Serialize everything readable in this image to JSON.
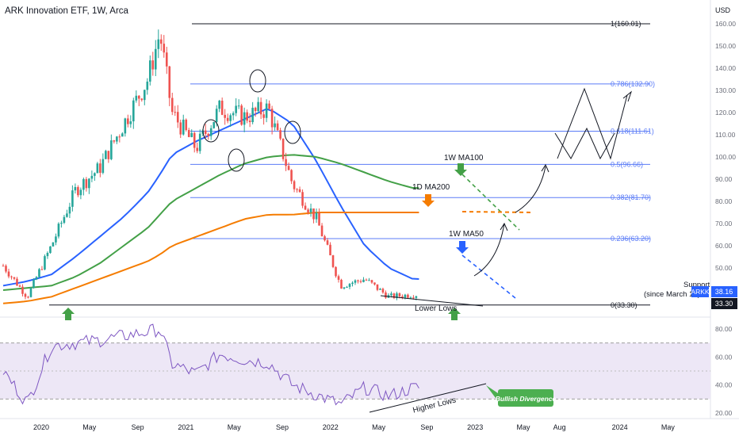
{
  "header": {
    "title": "ARK Innovation ETF, 1W, Arca"
  },
  "currency": "USD",
  "colors": {
    "bull": "#26a69a",
    "bear": "#ef5350",
    "ma50": "#2962ff",
    "ma100": "#43a047",
    "ma200": "#f57c00",
    "fib": "#5b7cf7",
    "rsi": "#7e57c2",
    "rsi_band": "#ede7f6",
    "green_arrow": "#43a047",
    "orange_arrow": "#f57c00",
    "blue_arrow": "#2962ff",
    "divergence_box": "#4caf50"
  },
  "price_axis": {
    "ticks": [
      "160.00",
      "150.00",
      "140.00",
      "130.00",
      "120.00",
      "110.00",
      "100.00",
      "90.00",
      "80.00",
      "70.00",
      "60.00",
      "50.00",
      "40.00"
    ],
    "tick_values": [
      160,
      150,
      140,
      130,
      120,
      110,
      100,
      90,
      80,
      70,
      60,
      50,
      40
    ]
  },
  "rsi_axis": {
    "ticks": [
      "80.00",
      "60.00",
      "40.00",
      "20.00"
    ],
    "tick_values": [
      80,
      60,
      40,
      20
    ]
  },
  "time_axis": {
    "labels": [
      "2020",
      "May",
      "Sep",
      "2021",
      "May",
      "Sep",
      "2022",
      "May",
      "Sep",
      "2023",
      "May",
      "Aug",
      "2024",
      "May"
    ]
  },
  "badges": {
    "ticker": "ARKK",
    "last_price": "38.16",
    "support_price": "33.30"
  },
  "fib_levels": [
    {
      "label": "1(160.01)",
      "value": 160.01
    },
    {
      "label": "0.786(132.90)",
      "value": 132.9
    },
    {
      "label": "0.618(111.61)",
      "value": 111.61
    },
    {
      "label": "0.5(96.66)",
      "value": 96.66
    },
    {
      "label": "0.382(81.70)",
      "value": 81.7
    },
    {
      "label": "0.236(63.20)",
      "value": 63.2
    },
    {
      "label": "0(33.30)",
      "value": 33.3
    }
  ],
  "annotations": {
    "ma100": "1W MA100",
    "ma200": "1D MA200",
    "ma50": "1W MA50",
    "support_line1": "Support",
    "support_line2": "(since March 16)",
    "lower_lows": "Lower Lows",
    "higher_lows": "Higher Lows",
    "bullish_divergence": "Bullish Divergence"
  },
  "chart_data": {
    "type": "line",
    "title": "ARK Innovation ETF, 1W, Arca",
    "ylabel": "USD",
    "ylim": [
      30,
      165
    ],
    "x": [
      "2020-01",
      "2020-03",
      "2020-05",
      "2020-07",
      "2020-09",
      "2020-11",
      "2021-01",
      "2021-02",
      "2021-03",
      "2021-05",
      "2021-07",
      "2021-09",
      "2021-11",
      "2022-01",
      "2022-03",
      "2022-05",
      "2022-07",
      "2022-09",
      "2022-11"
    ],
    "series": [
      {
        "name": "ARKK",
        "values": [
          51,
          37,
          60,
          85,
          95,
          115,
          135,
          156,
          120,
          104,
          122,
          118,
          122,
          88,
          72,
          42,
          45,
          37,
          38
        ]
      },
      {
        "name": "1W MA50",
        "values": [
          42,
          44,
          47,
          55,
          64,
          73,
          84,
          92,
          101,
          107,
          112,
          117,
          122,
          115,
          98,
          78,
          60,
          50,
          45
        ]
      },
      {
        "name": "1W MA100",
        "values": [
          40,
          41,
          42,
          46,
          52,
          60,
          68,
          74,
          80,
          86,
          92,
          97,
          100,
          101,
          100,
          97,
          93,
          89,
          86
        ]
      },
      {
        "name": "1D MA200",
        "values": [
          34,
          35,
          37,
          41,
          45,
          49,
          53,
          56,
          60,
          64,
          68,
          72,
          74,
          74,
          75,
          75,
          75,
          75,
          75
        ]
      },
      {
        "name": "RSI",
        "values": [
          50,
          27,
          68,
          70,
          72,
          75,
          78,
          80,
          55,
          48,
          62,
          58,
          56,
          40,
          33,
          26,
          38,
          32,
          38
        ]
      }
    ],
    "rsi_ylim": [
      20,
      90
    ],
    "support": 33.3
  }
}
